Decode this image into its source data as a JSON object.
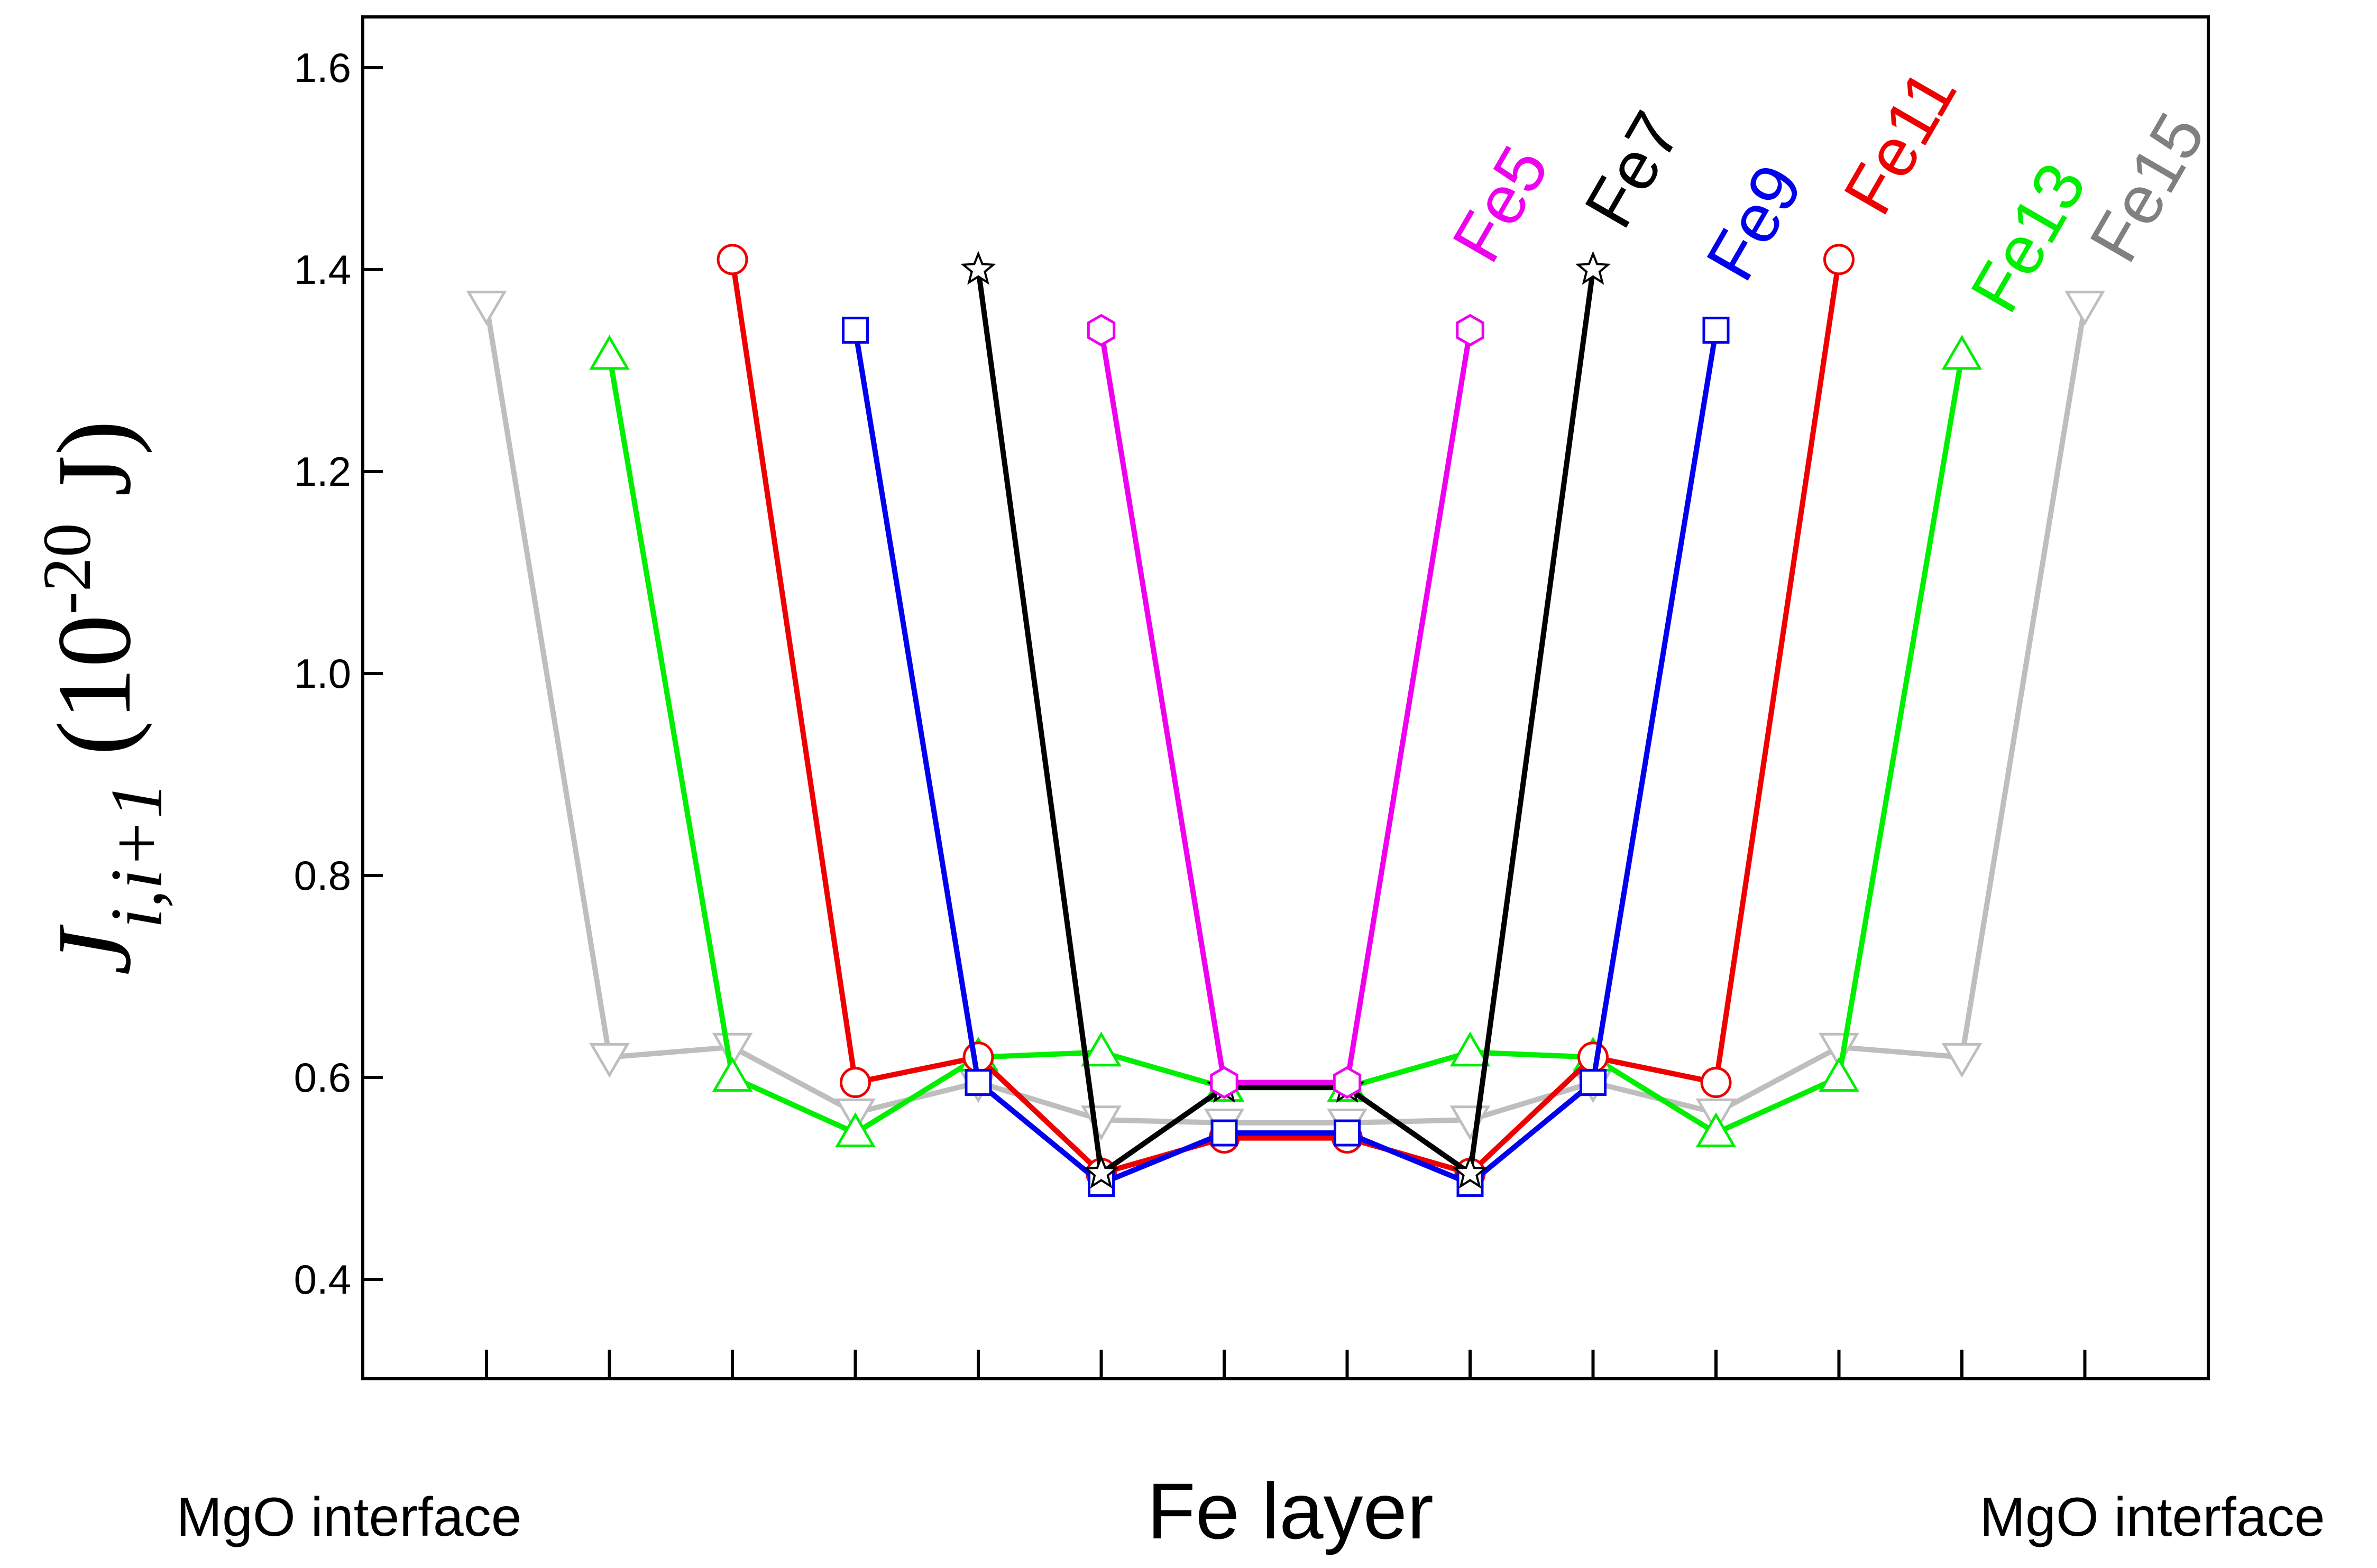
{
  "chart_data": {
    "type": "line",
    "title": "",
    "xlabel": "Fe layer",
    "ylabel": {
      "symbol": "J",
      "subscript": "i,i+1",
      "open": " (10",
      "exponent": "-20",
      "close": " J)"
    },
    "x_side_labels": {
      "left": "MgO interface",
      "right": "MgO interface"
    },
    "ylim": [
      0.3,
      1.65
    ],
    "xlim": [
      0,
      15
    ],
    "yticks": [
      0.4,
      0.6,
      0.8,
      1.0,
      1.2,
      1.4,
      1.6
    ],
    "ytick_labels": [
      "0.4",
      "0.6",
      "0.8",
      "1.0",
      "1.2",
      "1.4",
      "1.6"
    ],
    "xticks": [
      1,
      2,
      3,
      4,
      5,
      6,
      7,
      8,
      9,
      10,
      11,
      12,
      13,
      14
    ],
    "grid": false,
    "series": [
      {
        "name": "Fe15",
        "label": "Fe15",
        "color": "#bebebe",
        "label_color": "#808080",
        "marker": "triangle-down",
        "x": [
          1,
          2,
          3,
          4,
          5,
          6,
          7,
          8,
          9,
          10,
          11,
          12,
          13,
          14
        ],
        "y": [
          1.365,
          0.62,
          0.63,
          0.565,
          0.595,
          0.558,
          0.555,
          0.555,
          0.558,
          0.595,
          0.565,
          0.63,
          0.62,
          1.365
        ]
      },
      {
        "name": "Fe13",
        "label": "Fe13",
        "color": "#00ee00",
        "label_color": "#00ee00",
        "marker": "triangle-up",
        "x": [
          2,
          3,
          4,
          5,
          6,
          7,
          8,
          9,
          10,
          11,
          12,
          13
        ],
        "y": [
          1.315,
          0.6,
          0.545,
          0.62,
          0.625,
          0.59,
          0.59,
          0.625,
          0.62,
          0.545,
          0.6,
          1.315
        ]
      },
      {
        "name": "Fe11",
        "label": "Fe11",
        "color": "#ee0000",
        "label_color": "#ee0000",
        "marker": "circle",
        "x": [
          3,
          4,
          5,
          6,
          7,
          8,
          9,
          10,
          11,
          12
        ],
        "y": [
          1.41,
          0.595,
          0.62,
          0.505,
          0.54,
          0.54,
          0.505,
          0.62,
          0.595,
          1.41
        ]
      },
      {
        "name": "Fe9",
        "label": "Fe9",
        "color": "#0000ee",
        "label_color": "#0000ee",
        "marker": "square",
        "x": [
          4,
          5,
          6,
          7,
          8,
          9,
          10,
          11
        ],
        "y": [
          1.34,
          0.595,
          0.495,
          0.545,
          0.545,
          0.495,
          0.595,
          1.34
        ]
      },
      {
        "name": "Fe7",
        "label": "Fe7",
        "color": "#000000",
        "label_color": "#000000",
        "marker": "star",
        "x": [
          5,
          6,
          7,
          8,
          9,
          10
        ],
        "y": [
          1.4,
          0.505,
          0.59,
          0.59,
          0.505,
          1.4
        ]
      },
      {
        "name": "Fe5",
        "label": "Fe5",
        "color": "#ee00ee",
        "label_color": "#ee00ee",
        "marker": "hexagon",
        "x": [
          6,
          7,
          8,
          9
        ],
        "y": [
          1.34,
          0.595,
          0.595,
          1.34
        ]
      }
    ]
  }
}
